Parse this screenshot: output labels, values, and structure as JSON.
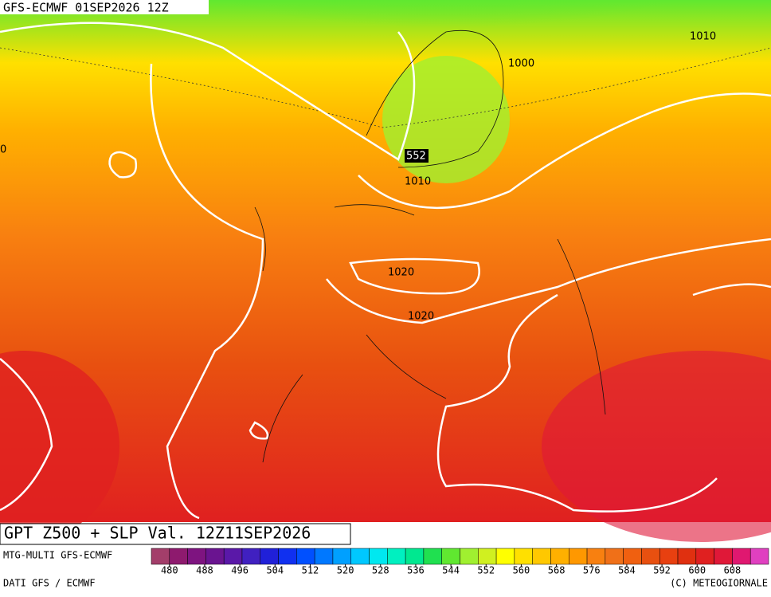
{
  "header": {
    "title": "GFS-ECMWF 01SEP2026 12Z"
  },
  "contour_labels": [
    "1010",
    "1000",
    "0",
    "552",
    "1010",
    "1020",
    "1020"
  ],
  "footer": {
    "title": "GPT Z500 + SLP Val. 12Z11SEP2026",
    "model": "MTG-MULTI GFS-ECMWF",
    "source": "DATI GFS / ECMWF",
    "credit": "(C) METEOGIORNALE"
  },
  "legend": {
    "colors": [
      "#a33e6a",
      "#8e1a6e",
      "#7e1480",
      "#6a1490",
      "#5a18a8",
      "#4020c0",
      "#2020d8",
      "#1030f0",
      "#0050ff",
      "#0078ff",
      "#00a0ff",
      "#00c8ff",
      "#00e8f0",
      "#00f0c0",
      "#00e890",
      "#20e050",
      "#60e830",
      "#a0f030",
      "#d0f020",
      "#ffff00",
      "#ffe000",
      "#ffc800",
      "#ffb000",
      "#ff9800",
      "#f88010",
      "#f07018",
      "#f06010",
      "#e85010",
      "#e84010",
      "#e03010",
      "#e02020",
      "#e01838",
      "#e01870",
      "#e040c0"
    ],
    "ticks": [
      480,
      488,
      496,
      504,
      512,
      520,
      528,
      536,
      544,
      552,
      560,
      568,
      576,
      584,
      592,
      600,
      608
    ]
  }
}
